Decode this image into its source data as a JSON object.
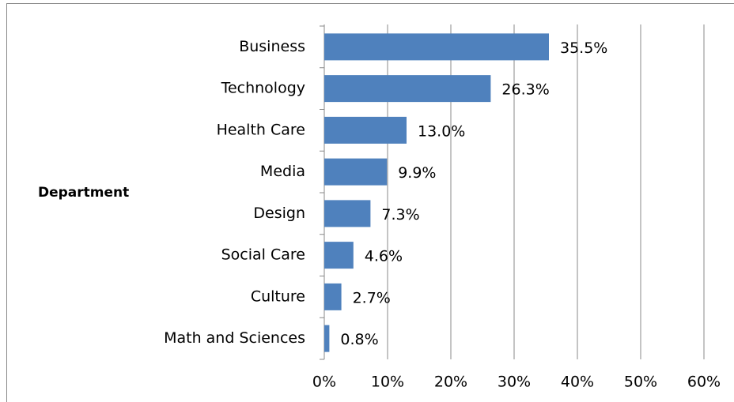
{
  "chart_data": {
    "type": "bar",
    "orientation": "horizontal",
    "y_label": "Department",
    "categories": [
      "Business",
      "Technology",
      "Health Care",
      "Media",
      "Design",
      "Social Care",
      "Culture",
      "Math and Sciences"
    ],
    "values": [
      35.5,
      26.3,
      13.0,
      9.9,
      7.3,
      4.6,
      2.7,
      0.8
    ],
    "value_labels": [
      "35.5%",
      "26.3%",
      "13.0%",
      "9.9%",
      "7.3%",
      "4.6%",
      "2.7%",
      "0.8%"
    ],
    "color": "#4f81bd",
    "xlim": [
      0,
      60
    ],
    "xticks": [
      {
        "value": 0,
        "label": "0%"
      },
      {
        "value": 10,
        "label": "10%"
      },
      {
        "value": 20,
        "label": "20%"
      },
      {
        "value": 30,
        "label": "30%"
      },
      {
        "value": 40,
        "label": "40%"
      },
      {
        "value": 50,
        "label": "50%"
      },
      {
        "value": 60,
        "label": "60%"
      }
    ],
    "grid": true
  }
}
